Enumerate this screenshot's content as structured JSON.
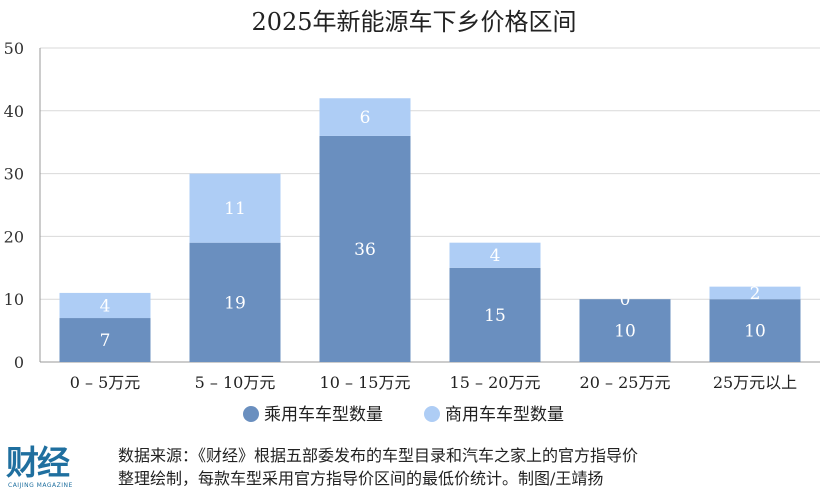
{
  "chart_data": {
    "type": "bar",
    "stacked": true,
    "title": "2025年新能源车下乡价格区间",
    "categories": [
      "0 – 5万元",
      "5 – 10万元",
      "10 – 15万元",
      "15 – 20万元",
      "20 – 25万元",
      "25万元以上"
    ],
    "series": [
      {
        "name": "乘用车车型数量",
        "values": [
          7,
          19,
          36,
          15,
          10,
          10
        ],
        "labels": [
          "7",
          "19",
          "36",
          "15",
          "10",
          "10"
        ],
        "color": "#6a8fbf"
      },
      {
        "name": "商用车车型数量",
        "values": [
          4,
          11,
          6,
          4,
          0,
          2
        ],
        "labels": [
          "4",
          "11",
          "6",
          "4",
          "0",
          "2"
        ],
        "color": "#aecdf5"
      }
    ],
    "yticks": [
      "0",
      "10",
      "20",
      "30",
      "40",
      "50"
    ],
    "ylim": [
      0,
      50
    ],
    "grid": true,
    "legend": "bottom"
  },
  "footer": {
    "source_line1": "数据来源：《财经》根据五部委发布的车型目录和汽车之家上的官方指导价",
    "source_line2": "整理绘制，每款车型采用官方指导价区间的最低价统计。制图/王靖扬",
    "logo_text": "财经",
    "logo_subtext": "CAIJING MAGAZINE"
  }
}
